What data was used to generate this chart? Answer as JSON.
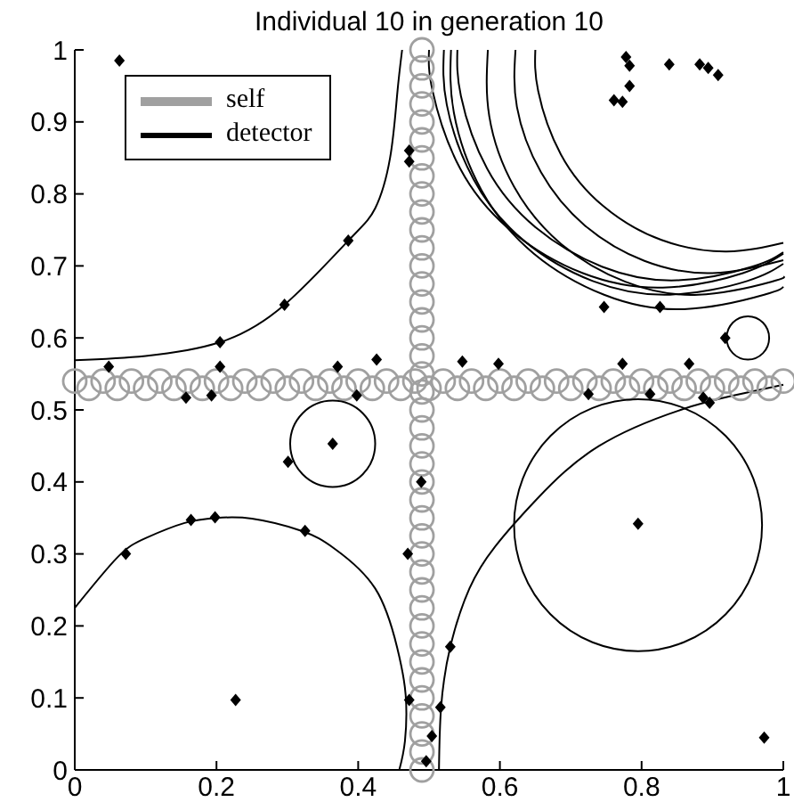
{
  "chart_data": {
    "type": "scatter",
    "title": "Individual 10 in generation 10",
    "xlim": [
      0,
      1
    ],
    "ylim": [
      0,
      1
    ],
    "xticks": [
      0,
      0.2,
      0.4,
      0.6,
      0.8,
      1
    ],
    "yticks": [
      0,
      0.1,
      0.2,
      0.3,
      0.4,
      0.5,
      0.6,
      0.7,
      0.8,
      0.9,
      1
    ],
    "grid": false,
    "legend": "top left",
    "series": [
      {
        "name": "self",
        "color": "#a0a0a0",
        "marker": "circle",
        "x": [
          0,
          0.02,
          0.04,
          0.06,
          0.08,
          0.1,
          0.12,
          0.14,
          0.16,
          0.18,
          0.2,
          0.22,
          0.24,
          0.26,
          0.28,
          0.3,
          0.32,
          0.34,
          0.36,
          0.38,
          0.4,
          0.42,
          0.44,
          0.46,
          0.48,
          0.5,
          0.52,
          0.54,
          0.56,
          0.58,
          0.6,
          0.62,
          0.64,
          0.66,
          0.68,
          0.7,
          0.72,
          0.74,
          0.76,
          0.78,
          0.8,
          0.82,
          0.84,
          0.86,
          0.88,
          0.9,
          0.92,
          0.94,
          0.96,
          0.98,
          1,
          0.49,
          0.49,
          0.49,
          0.49,
          0.49,
          0.49,
          0.49,
          0.49,
          0.49,
          0.49,
          0.49,
          0.49,
          0.49,
          0.49,
          0.49,
          0.49,
          0.49,
          0.49,
          0.49,
          0.49,
          0.49,
          0.49,
          0.49,
          0.49,
          0.49,
          0.49,
          0.49,
          0.49,
          0.49,
          0.49,
          0.49,
          0.49,
          0.49,
          0.49,
          0.49,
          0.49,
          0.49,
          0.49,
          0.49,
          0.49,
          0.49
        ],
        "values": [
          0.54,
          0.53,
          0.54,
          0.53,
          0.54,
          0.53,
          0.54,
          0.53,
          0.54,
          0.53,
          0.54,
          0.53,
          0.54,
          0.53,
          0.54,
          0.53,
          0.54,
          0.53,
          0.54,
          0.53,
          0.54,
          0.53,
          0.54,
          0.53,
          0.54,
          0.53,
          0.54,
          0.53,
          0.54,
          0.53,
          0.54,
          0.53,
          0.54,
          0.53,
          0.54,
          0.53,
          0.54,
          0.53,
          0.54,
          0.53,
          0.54,
          0.53,
          0.54,
          0.53,
          0.54,
          0.53,
          0.54,
          0.53,
          0.54,
          0.53,
          0.54,
          0,
          0.025,
          0.05,
          0.075,
          0.1,
          0.125,
          0.15,
          0.175,
          0.2,
          0.225,
          0.25,
          0.275,
          0.3,
          0.325,
          0.35,
          0.375,
          0.4,
          0.425,
          0.45,
          0.475,
          0.5,
          0.525,
          0.55,
          0.575,
          0.6,
          0.625,
          0.65,
          0.675,
          0.7,
          0.725,
          0.75,
          0.775,
          0.8,
          0.825,
          0.85,
          0.875,
          0.9,
          0.925,
          0.95,
          0.975,
          1
        ]
      },
      {
        "name": "detector",
        "type": "line",
        "color": "#000000",
        "x": [
          0.531,
          0.535,
          0.574,
          0.648,
          0.747,
          0.86,
          0.973,
          1
        ],
        "values": [
          1,
          0.913,
          0.805,
          0.717,
          0.66,
          0.64,
          0.66,
          0.671
        ]
      },
      {
        "type": "line",
        "color": "#000000",
        "x": [
          0.521,
          0.525,
          0.563,
          0.634,
          0.731,
          0.84,
          0.949,
          1
        ],
        "values": [
          1,
          0.924,
          0.82,
          0.735,
          0.679,
          0.66,
          0.679,
          0.703
        ]
      },
      {
        "type": "line",
        "color": "#000000",
        "x": [
          0.54,
          0.545,
          0.582,
          0.651,
          0.744,
          0.85,
          0.956,
          1
        ],
        "values": [
          1,
          0.936,
          0.835,
          0.753,
          0.699,
          0.68,
          0.699,
          0.719
        ]
      },
      {
        "type": "line",
        "color": "#000000",
        "x": [
          0.583,
          0.585,
          0.62,
          0.687,
          0.777,
          0.88,
          0.983,
          1
        ],
        "values": [
          1,
          0.908,
          0.81,
          0.73,
          0.678,
          0.66,
          0.678,
          0.685
        ]
      },
      {
        "type": "line",
        "color": "#000000",
        "x": [
          0.622,
          0.624,
          0.658,
          0.72,
          0.804,
          0.9,
          1
        ],
        "values": [
          1,
          0.921,
          0.83,
          0.756,
          0.707,
          0.69,
          0.708
        ]
      },
      {
        "type": "line",
        "color": "#000000",
        "x": [
          0.65,
          0.654,
          0.686,
          0.746,
          0.828,
          0.92,
          1
        ],
        "values": [
          1,
          0.943,
          0.855,
          0.783,
          0.736,
          0.72,
          0.732
        ]
      },
      {
        "type": "line",
        "color": "#000000",
        "x": [
          0.5,
          0.505,
          0.544,
          0.618,
          0.717,
          0.83,
          0.943,
          1
        ],
        "values": [
          1,
          0.943,
          0.835,
          0.747,
          0.69,
          0.67,
          0.69,
          0.717
        ]
      },
      {
        "type": "line",
        "color": "#000000",
        "x": [
          0,
          0.1,
          0.205,
          0.296,
          0.386,
          0.424,
          0.445,
          0.455,
          0.462
        ],
        "values": [
          0.569,
          0.575,
          0.594,
          0.646,
          0.735,
          0.78,
          0.85,
          0.938,
          1
        ]
      },
      {
        "type": "line",
        "color": "#000000",
        "x": [
          0,
          0.06,
          0.1,
          0.155,
          0.2,
          0.25,
          0.32,
          0.367,
          0.424,
          0.455,
          0.467,
          0.466,
          0.458
        ],
        "values": [
          0.225,
          0.295,
          0.322,
          0.343,
          0.35,
          0.349,
          0.332,
          0.307,
          0.252,
          0.17,
          0.104,
          0.04,
          0
        ]
      },
      {
        "type": "line",
        "color": "#000000",
        "x": [
          0.514,
          0.517,
          0.53,
          0.557,
          0.593,
          0.652,
          0.74,
          0.855,
          0.93,
          1
        ],
        "values": [
          0,
          0.087,
          0.171,
          0.252,
          0.31,
          0.376,
          0.45,
          0.5,
          0.52,
          0.535
        ]
      },
      {
        "color": "#000000",
        "marker": "diamond",
        "x": [
          0.063,
          0.048,
          0.205,
          0.157,
          0.193,
          0.371,
          0.398,
          0.426,
          0.472,
          0.472,
          0.205,
          0.296,
          0.386,
          0.778,
          0.783,
          0.839,
          0.882,
          0.894,
          0.908,
          0.783,
          0.761,
          0.773,
          0.747,
          0.826,
          0.918,
          0.547,
          0.598,
          0.773,
          0.867,
          0.725,
          0.812,
          0.887,
          0.896,
          0.364,
          0.301,
          0.072,
          0.164,
          0.198,
          0.325,
          0.47,
          0.227,
          0.472,
          0.489,
          0.795,
          0.53,
          0.516,
          0.504,
          0.496,
          0.973
        ],
        "values": [
          0.985,
          0.56,
          0.56,
          0.517,
          0.52,
          0.56,
          0.52,
          0.57,
          0.86,
          0.845,
          0.594,
          0.646,
          0.735,
          0.99,
          0.978,
          0.98,
          0.98,
          0.975,
          0.965,
          0.95,
          0.93,
          0.928,
          0.643,
          0.643,
          0.6,
          0.567,
          0.564,
          0.564,
          0.564,
          0.522,
          0.522,
          0.517,
          0.51,
          0.453,
          0.428,
          0.3,
          0.347,
          0.351,
          0.332,
          0.3,
          0.097,
          0.097,
          0.4,
          0.342,
          0.171,
          0.087,
          0.047,
          0.012,
          0.045
        ]
      }
    ]
  }
}
